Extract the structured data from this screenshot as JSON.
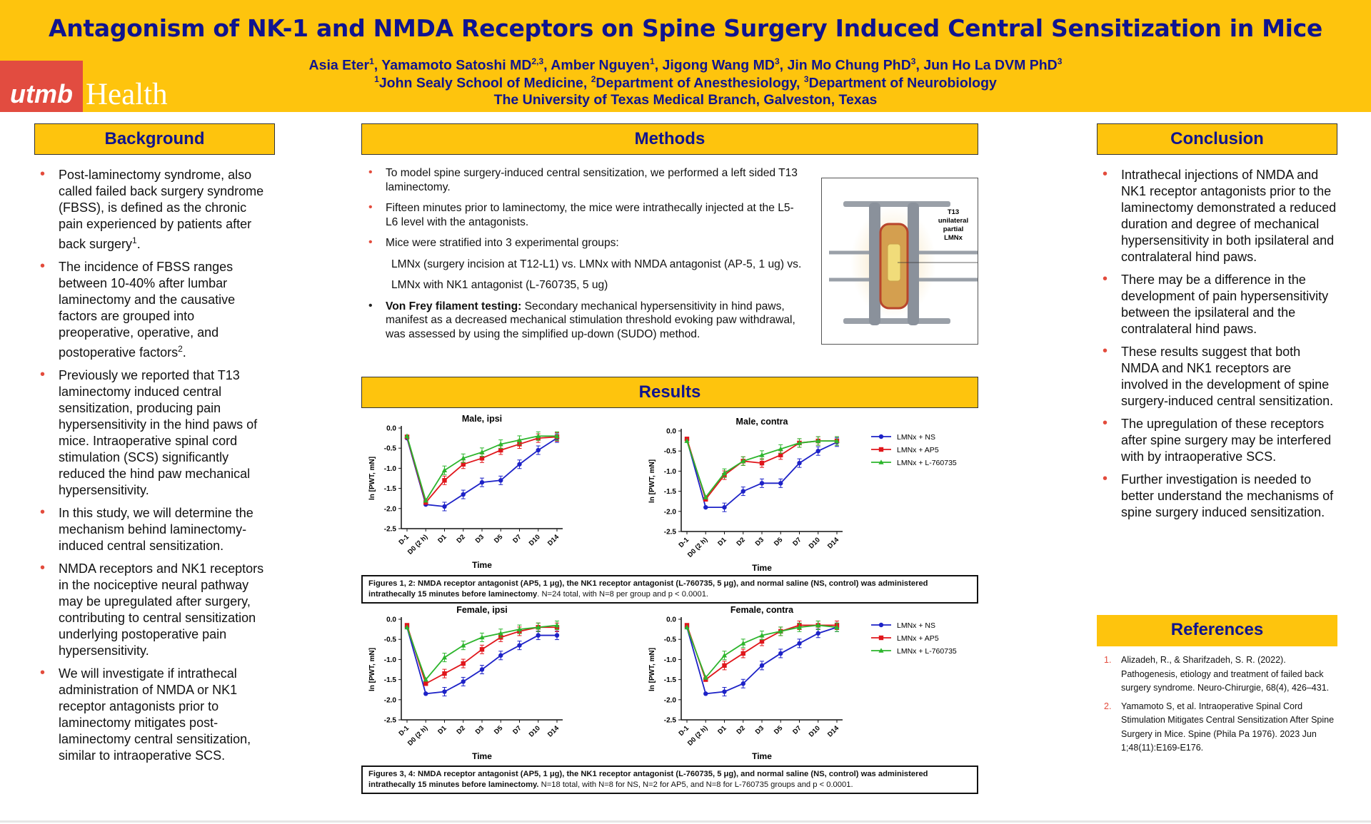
{
  "header": {
    "title": "Antagonism of NK-1 and NMDA Receptors on Spine Surgery Induced Central Sensitization in Mice",
    "authors": [
      {
        "name": "Asia Eter",
        "sup": "1"
      },
      {
        "name": "Yamamoto Satoshi MD",
        "sup": "2,3"
      },
      {
        "name": "Amber Nguyen",
        "sup": "1"
      },
      {
        "name": "Jigong Wang MD",
        "sup": "3"
      },
      {
        "name": "Jin Mo Chung PhD",
        "sup": "3"
      },
      {
        "name": "Jun Ho La DVM PhD",
        "sup": "3"
      }
    ],
    "affiliations": [
      {
        "sup": "1",
        "name": "John Sealy School of Medicine"
      },
      {
        "sup": "2",
        "name": "Department of Anesthesiology"
      },
      {
        "sup": "3",
        "name": "Department of Neurobiology"
      }
    ],
    "university": "The University of Texas Medical Branch, Galveston, Texas",
    "logo": {
      "part1": "utmb",
      "part2": "Health"
    }
  },
  "colors": {
    "banner": "#fec40d",
    "title": "#10148f",
    "logo": "#e24c40",
    "bullet": "#e34b3c",
    "ns": "#1d22c7",
    "ap5": "#e0161b",
    "l760735": "#2cb52c"
  },
  "background": {
    "heading": "Background",
    "items": [
      [
        "Post-laminectomy syndrome, also called failed back surgery syndrome (FBSS), is defined as the chronic pain experienced by patients after back surgery",
        "1",
        "."
      ],
      [
        "The incidence of FBSS ranges between 10-40% after lumbar laminectomy and the causative factors are grouped into preoperative, operative, and postoperative factors",
        "2",
        "."
      ],
      [
        "Previously we reported that T13 laminectomy induced central sensitization, producing pain hypersensitivity in the hind paws of mice. Intraoperative spinal cord stimulation (SCS) significantly reduced the hind paw mechanical hypersensitivity.",
        "",
        ""
      ],
      [
        "In this study, we will determine the mechanism behind laminectomy-induced central sensitization.",
        "",
        ""
      ],
      [
        "NMDA receptors and NK1 receptors in the nociceptive neural pathway may be upregulated after surgery, contributing to central sensitization underlying postoperative pain hypersensitivity.",
        "",
        ""
      ],
      [
        "We will investigate if intrathecal administration of NMDA or NK1 receptor antagonists prior to laminectomy mitigates post-laminectomy central sensitization, similar to intraoperative SCS.",
        "",
        ""
      ]
    ]
  },
  "methods": {
    "heading": "Methods",
    "p1": "To model spine surgery-induced central sensitization, we performed a left sided T13 laminectomy.",
    "p2": "Fifteen minutes prior to laminectomy, the mice were intrathecally injected at the L5-L6 level with the antagonists.",
    "p3": "Mice were stratified into 3 experimental groups:",
    "g1": "LMNx (surgery incision at T12-L1) vs. LMNx with NMDA antagonist (AP-5, 1 ug) vs.",
    "g2": "LMNx with NK1 antagonist (L-760735, 5 ug)",
    "vf_bold": "Von Frey filament testing:",
    "vf_text": " Secondary mechanical hypersensitivity in hind paws, manifest as a decreased mechanical stimulation threshold evoking paw withdrawal, was assessed by using the simplified up-down (SUDO) method.",
    "figure_label": [
      "T13",
      "unilateral",
      "partial",
      "LMNx"
    ]
  },
  "results": {
    "heading": "Results",
    "caption1_bold": "Figures 1, 2: NMDA receptor antagonist (AP5, 1 μg), the NK1 receptor antagonist (L-760735, 5 μg), and normal saline (NS, control) was administered intrathecally 15 minutes before laminectomy",
    "caption1_rest": ". N=24 total, with N=8 per group and p < 0.0001.",
    "caption2_bold": "Figures 3, 4: NMDA receptor antagonist (AP5, 1 μg), the NK1 receptor antagonist (L-760735, 5 μg), and normal saline (NS, control) was administered intrathecally 15 minutes before laminectomy.",
    "caption2_rest": " N=18 total, with N=8 for NS, N=2 for AP5, and N=8 for L-760735 groups and p < 0.0001."
  },
  "chart_data": [
    {
      "type": "line",
      "title": "Male, ipsi",
      "xlabel": "Time",
      "ylabel": "ln [PWT, mN]",
      "categories": [
        "D-1",
        "D0 (2 h)",
        "D1",
        "D2",
        "D3",
        "D5",
        "D7",
        "D10",
        "D14"
      ],
      "yticks": [
        "0.0",
        "-0.5",
        "-1.0",
        "-1.5",
        "-2.0",
        "-2.5"
      ],
      "ylim": [
        -2.5,
        0
      ],
      "legend": [],
      "series": [
        {
          "name": "LMNx + NS",
          "values": [
            -0.25,
            -1.9,
            -1.95,
            -1.65,
            -1.35,
            -1.3,
            -0.9,
            -0.55,
            -0.25
          ]
        },
        {
          "name": "LMNx + AP5",
          "values": [
            -0.22,
            -1.85,
            -1.3,
            -0.9,
            -0.75,
            -0.55,
            -0.4,
            -0.25,
            -0.22
          ]
        },
        {
          "name": "LMNx + L-760735",
          "values": [
            -0.2,
            -1.8,
            -1.05,
            -0.75,
            -0.6,
            -0.4,
            -0.3,
            -0.2,
            -0.2
          ]
        }
      ]
    },
    {
      "type": "line",
      "title": "Male, contra",
      "xlabel": "Time",
      "ylabel": "ln [PWT, mN]",
      "categories": [
        "D-1",
        "D0 (2 h)",
        "D1",
        "D2",
        "D3",
        "D5",
        "D7",
        "D10",
        "D14"
      ],
      "yticks": [
        "0.0",
        "-0.5",
        "-1.0",
        "-1.5",
        "-2.0",
        "-2.5"
      ],
      "ylim": [
        -2.5,
        0
      ],
      "legend": [
        "LMNx + NS",
        "LMNx + AP5",
        "LMNx + L-760735"
      ],
      "series": [
        {
          "name": "LMNx + NS",
          "values": [
            -0.22,
            -1.9,
            -1.9,
            -1.5,
            -1.3,
            -1.3,
            -0.8,
            -0.5,
            -0.28
          ]
        },
        {
          "name": "LMNx + AP5",
          "values": [
            -0.2,
            -1.7,
            -1.1,
            -0.75,
            -0.8,
            -0.6,
            -0.3,
            -0.25,
            -0.25
          ]
        },
        {
          "name": "LMNx + L-760735",
          "values": [
            -0.25,
            -1.65,
            -1.05,
            -0.75,
            -0.6,
            -0.45,
            -0.3,
            -0.25,
            -0.25
          ]
        }
      ]
    },
    {
      "type": "line",
      "title": "Female, ipsi",
      "xlabel": "Time",
      "ylabel": "ln [PWT, mN]",
      "categories": [
        "D-1",
        "D0 (2 h)",
        "D1",
        "D2",
        "D3",
        "D5",
        "D7",
        "D10",
        "D14"
      ],
      "yticks": [
        "0.0",
        "-0.5",
        "-1.0",
        "-1.5",
        "-2.0",
        "-2.5"
      ],
      "ylim": [
        -2.5,
        0
      ],
      "legend": [],
      "series": [
        {
          "name": "LMNx + NS",
          "values": [
            -0.2,
            -1.85,
            -1.8,
            -1.55,
            -1.25,
            -0.9,
            -0.65,
            -0.4,
            -0.4
          ]
        },
        {
          "name": "LMNx + AP5",
          "values": [
            -0.15,
            -1.6,
            -1.35,
            -1.1,
            -0.75,
            -0.45,
            -0.3,
            -0.2,
            -0.2
          ]
        },
        {
          "name": "LMNx + L-760735",
          "values": [
            -0.2,
            -1.5,
            -0.95,
            -0.65,
            -0.45,
            -0.35,
            -0.25,
            -0.2,
            -0.15
          ]
        }
      ]
    },
    {
      "type": "line",
      "title": "Female, contra",
      "xlabel": "Time",
      "ylabel": "ln [PWT, mN]",
      "categories": [
        "D-1",
        "D0 (2 h)",
        "D1",
        "D2",
        "D3",
        "D5",
        "D7",
        "D10",
        "D14"
      ],
      "yticks": [
        "0.0",
        "-0.5",
        "-1.0",
        "-1.5",
        "-2.0",
        "-2.5"
      ],
      "ylim": [
        -2.5,
        0
      ],
      "legend": [
        "LMNx + NS",
        "LMNx + AP5",
        "LMNx + L-760735"
      ],
      "series": [
        {
          "name": "LMNx + NS",
          "values": [
            -0.2,
            -1.85,
            -1.8,
            -1.6,
            -1.15,
            -0.85,
            -0.6,
            -0.35,
            -0.2
          ]
        },
        {
          "name": "LMNx + AP5",
          "values": [
            -0.15,
            -1.5,
            -1.15,
            -0.85,
            -0.55,
            -0.3,
            -0.15,
            -0.15,
            -0.15
          ]
        },
        {
          "name": "LMNx + L-760735",
          "values": [
            -0.2,
            -1.45,
            -0.9,
            -0.6,
            -0.4,
            -0.3,
            -0.2,
            -0.15,
            -0.2
          ]
        }
      ]
    }
  ],
  "conclusion": {
    "heading": "Conclusion",
    "items": [
      "Intrathecal injections of NMDA and NK1 receptor antagonists prior to the laminectomy demonstrated a reduced duration and degree of mechanical hypersensitivity in both ipsilateral and contralateral hind paws.",
      "There may be a difference in the development of pain hypersensitivity between the ipsilateral and the contralateral hind paws.",
      "These results suggest that both NMDA and NK1 receptors are involved in the development of spine surgery-induced central sensitization.",
      "The upregulation of these receptors after spine surgery may be interfered with by intraoperative SCS.",
      "Further investigation is needed to better understand the mechanisms of spine surgery induced sensitization."
    ]
  },
  "references": {
    "heading": "References",
    "items": [
      {
        "num": "1.",
        "text": "Alizadeh, R., & Sharifzadeh, S. R. (2022). Pathogenesis, etiology and treatment of failed back surgery syndrome. Neuro-Chirurgie, 68(4), 426–431."
      },
      {
        "num": "2.",
        "text": "Yamamoto S, et al. Intraoperative Spinal Cord Stimulation Mitigates Central Sensitization After Spine Surgery in Mice. Spine (Phila Pa 1976). 2023 Jun 1;48(11):E169-E176."
      }
    ]
  }
}
